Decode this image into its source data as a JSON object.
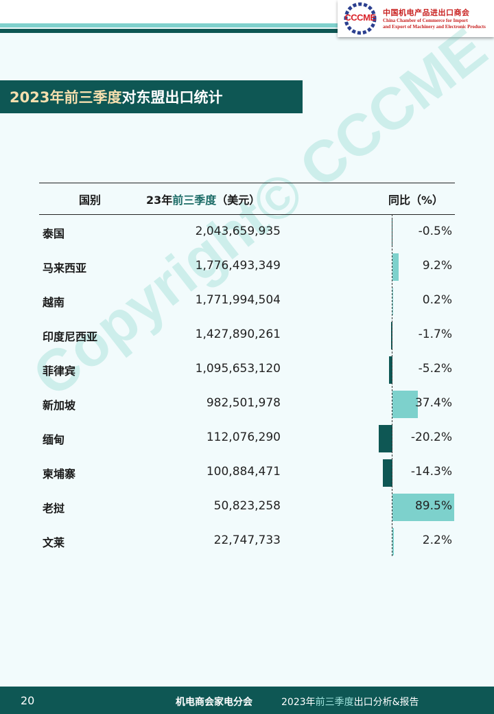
{
  "header": {
    "logo_abbr": "CCCME",
    "logo_cn": "中国机电产品进出口商会",
    "logo_en_line1": "China Chamber of Commerce for Import",
    "logo_en_line2": "and Export of Machinery and Electronic Products"
  },
  "title": {
    "highlight": "2023年前三季度",
    "rest": "对东盟出口统计"
  },
  "watermark": "Copyright© CCCME",
  "table": {
    "col_country": "国别",
    "col_value_prefix": "23年",
    "col_value_highlight": "前三季度",
    "col_value_suffix": "（美元）",
    "col_yoy": "同比（%）",
    "rows": [
      {
        "country": "泰国",
        "value": "2,043,659,935",
        "yoy": "-0.5%",
        "yoy_num": -0.5
      },
      {
        "country": "马来西亚",
        "value": "1,776,493,349",
        "yoy": "9.2%",
        "yoy_num": 9.2
      },
      {
        "country": "越南",
        "value": "1,771,994,504",
        "yoy": "0.2%",
        "yoy_num": 0.2
      },
      {
        "country": "印度尼西亚",
        "value": "1,427,890,261",
        "yoy": "-1.7%",
        "yoy_num": -1.7
      },
      {
        "country": "菲律宾",
        "value": "1,095,653,120",
        "yoy": "-5.2%",
        "yoy_num": -5.2
      },
      {
        "country": "新加坡",
        "value": "982,501,978",
        "yoy": "37.4%",
        "yoy_num": 37.4
      },
      {
        "country": "缅甸",
        "value": "112,076,290",
        "yoy": "-20.2%",
        "yoy_num": -20.2
      },
      {
        "country": "柬埔寨",
        "value": "100,884,471",
        "yoy": "-14.3%",
        "yoy_num": -14.3
      },
      {
        "country": "老挝",
        "value": "50,823,258",
        "yoy": "89.5%",
        "yoy_num": 89.5
      },
      {
        "country": "文莱",
        "value": "22,747,733",
        "yoy": "2.2%",
        "yoy_num": 2.2
      }
    ]
  },
  "colors": {
    "positive_bar": "#7dd1cc",
    "negative_bar": "#0e5754"
  },
  "footer": {
    "page_number": "20",
    "org": "机电商会家电分会",
    "report_prefix": "2023年",
    "report_highlight": "前三季度",
    "report_suffix": "出口分析&报告"
  }
}
